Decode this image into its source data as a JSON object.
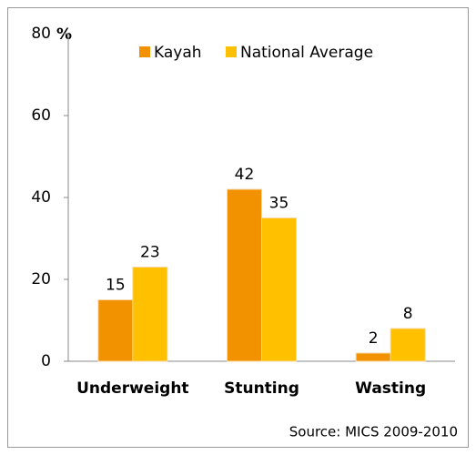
{
  "chart_data": {
    "type": "bar",
    "y_label": "%",
    "categories": [
      "Underweight",
      "Stunting",
      "Wasting"
    ],
    "series": [
      {
        "name": "Kayah",
        "color": "#f39200",
        "values": [
          15,
          42,
          2
        ]
      },
      {
        "name": "National Average",
        "color": "#ffc000",
        "values": [
          23,
          35,
          8
        ]
      }
    ],
    "ylim": [
      0,
      80
    ],
    "yticks": [
      0,
      20,
      40,
      60,
      80
    ],
    "legend": "top",
    "annotation": "Source: MICS 2009-2010"
  }
}
